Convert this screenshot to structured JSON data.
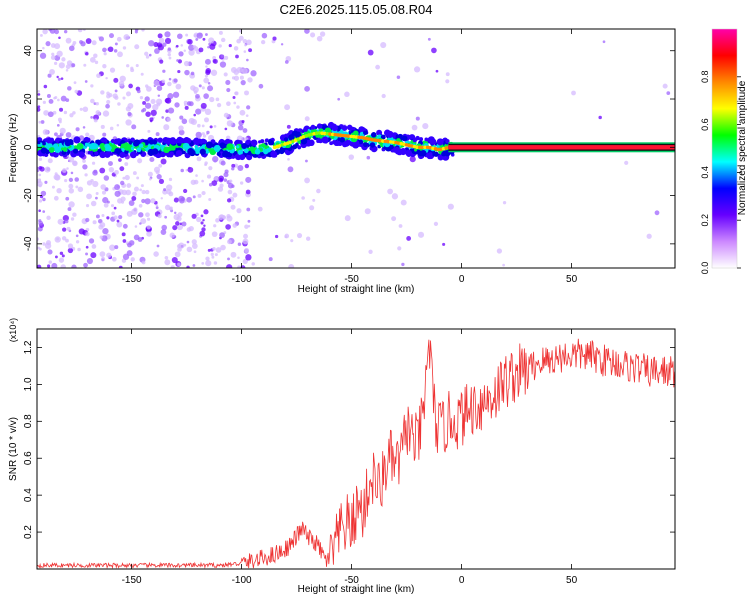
{
  "title": "C2E6.2025.115.05.08.R04",
  "chart_data": [
    {
      "type": "heatmap",
      "title": "C2E6.2025.115.05.08.R04",
      "xlabel": "Height of straight line (km)",
      "ylabel": "Frequency (Hz)",
      "xlim": [
        -193,
        97
      ],
      "ylim": [
        -50,
        49
      ],
      "x_ticks": [
        -150,
        -100,
        -50,
        0,
        50
      ],
      "y_ticks": [
        -40,
        -20,
        0,
        20,
        40
      ],
      "colorbar": {
        "label": "Normalized spectral amplitude",
        "range": [
          0,
          1
        ],
        "ticks": [
          0.0,
          0.2,
          0.4,
          0.6,
          0.8
        ],
        "colormap": [
          "#ffffff",
          "#cc88ff",
          "#6600ff",
          "#0000ff",
          "#00ffff",
          "#00ff00",
          "#ffff00",
          "#ff8800",
          "#ff0000",
          "#ff00aa"
        ]
      },
      "ridge": {
        "x": [
          -193,
          -160,
          -130,
          -100,
          -95,
          -85,
          -78,
          -70,
          -65,
          -55,
          -45,
          -40,
          -30,
          -25,
          -20,
          -15,
          -10,
          -6,
          0,
          20,
          50,
          97
        ],
        "y": [
          0,
          0,
          0,
          -1,
          -1,
          0,
          2,
          5,
          6,
          5,
          4,
          3,
          2,
          1,
          0,
          0,
          -1,
          0,
          0,
          0,
          0,
          0
        ]
      },
      "grid": false
    },
    {
      "type": "line",
      "xlabel": "Height of straight line (km)",
      "ylabel": "SNR (10 * v/v)",
      "y_multiplier": "(x10⁴)",
      "xlim": [
        -193,
        97
      ],
      "ylim": [
        0,
        1.3
      ],
      "x_ticks": [
        -150,
        -100,
        -50,
        0,
        50
      ],
      "y_ticks": [
        0.2,
        0.4,
        0.6,
        0.8,
        1.0,
        1.2
      ],
      "color": "#ee3333",
      "x": [
        -193,
        -170,
        -150,
        -130,
        -110,
        -100,
        -95,
        -90,
        -85,
        -80,
        -77,
        -75,
        -72,
        -70,
        -67,
        -65,
        -62,
        -60,
        -57,
        -55,
        -52,
        -50,
        -47,
        -45,
        -42,
        -40,
        -37,
        -35,
        -32,
        -30,
        -27,
        -25,
        -22,
        -20,
        -17,
        -15,
        -12,
        -10,
        -7,
        -5,
        -2,
        0,
        5,
        10,
        15,
        20,
        25,
        30,
        35,
        40,
        45,
        50,
        55,
        60,
        65,
        70,
        75,
        80,
        85,
        90,
        97
      ],
      "y": [
        0.02,
        0.02,
        0.02,
        0.02,
        0.02,
        0.03,
        0.04,
        0.06,
        0.08,
        0.11,
        0.14,
        0.18,
        0.22,
        0.17,
        0.15,
        0.12,
        0.05,
        0.05,
        0.14,
        0.2,
        0.25,
        0.22,
        0.35,
        0.3,
        0.45,
        0.5,
        0.42,
        0.55,
        0.6,
        0.55,
        0.62,
        0.78,
        0.7,
        0.68,
        0.85,
        1.27,
        0.8,
        0.75,
        0.78,
        0.82,
        0.8,
        0.82,
        0.88,
        0.9,
        0.95,
        1.02,
        1.06,
        1.08,
        1.12,
        1.13,
        1.15,
        1.16,
        1.16,
        1.15,
        1.13,
        1.12,
        1.1,
        1.09,
        1.07,
        1.07,
        1.07
      ]
    }
  ]
}
